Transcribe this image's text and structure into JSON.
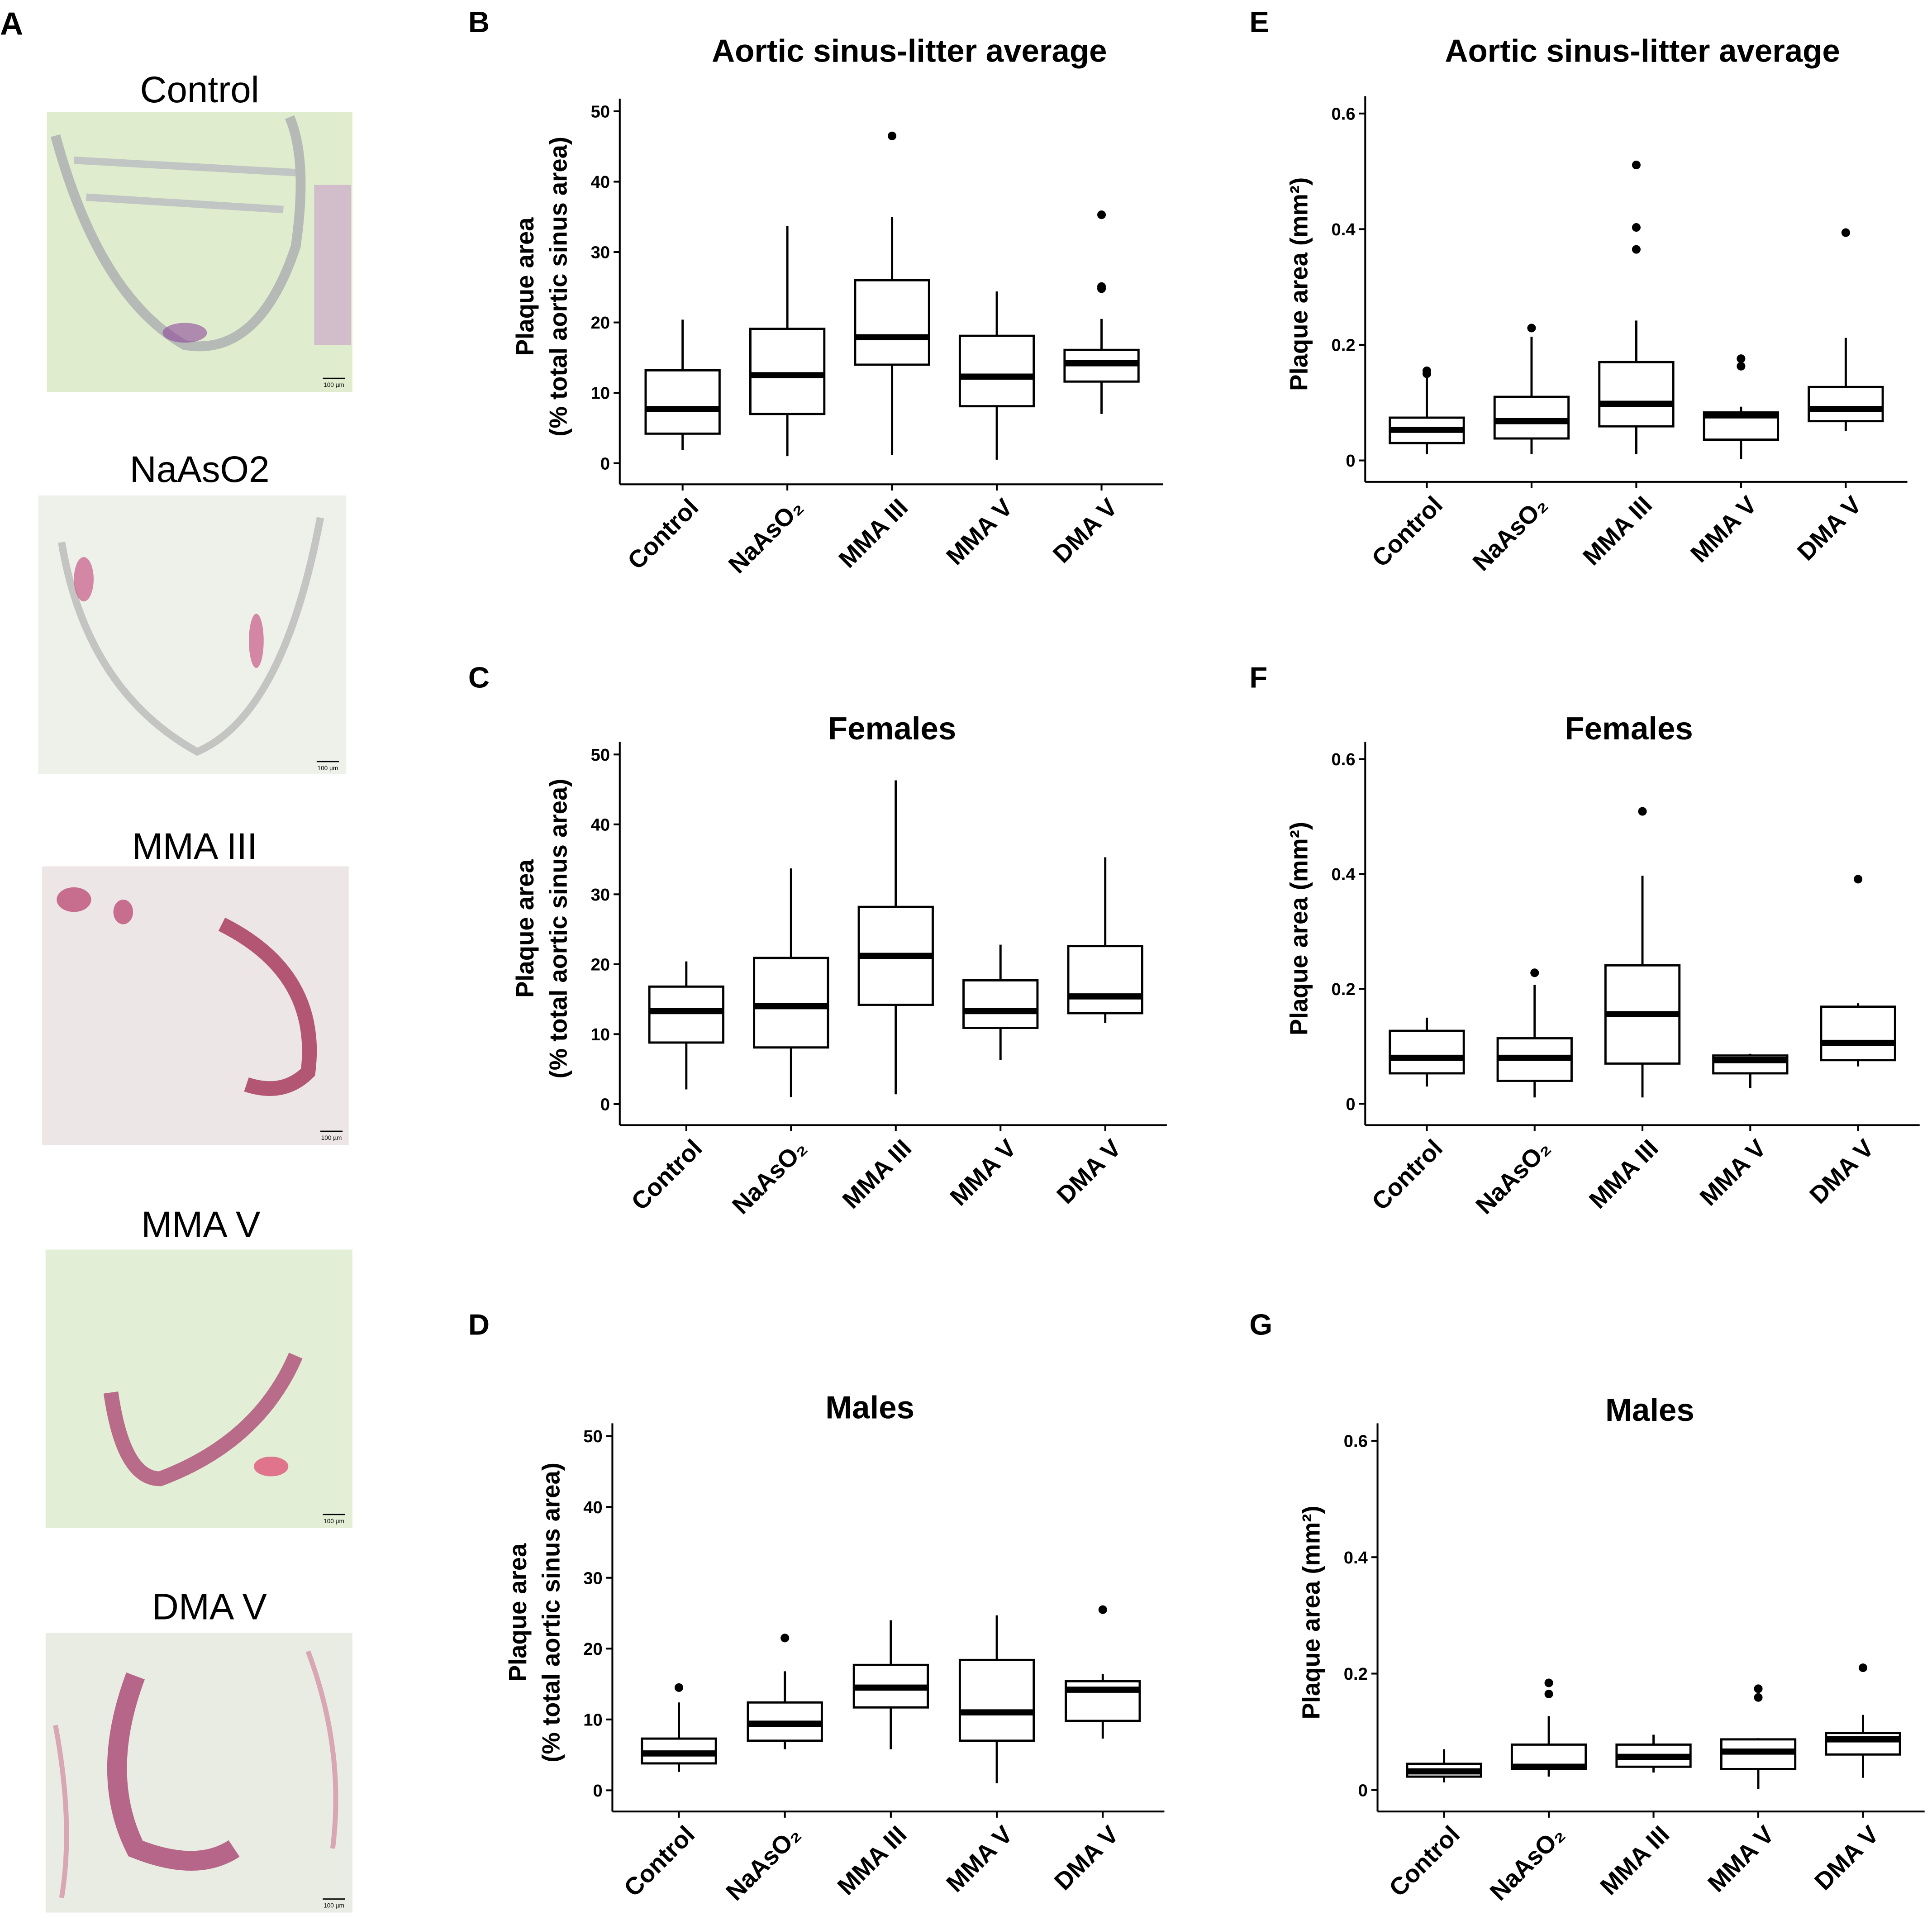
{
  "panel_a": {
    "label": "A",
    "images": [
      {
        "title": "Control",
        "scale_bar": "100 µm"
      },
      {
        "title": "NaAsO2",
        "scale_bar": "100 µm"
      },
      {
        "title": "MMA III",
        "scale_bar": "100 µm"
      },
      {
        "title": "MMA V",
        "scale_bar": "100 µm"
      },
      {
        "title": "DMA V",
        "scale_bar": "100 µm"
      }
    ]
  },
  "chart_data": [
    {
      "type": "box",
      "panel": "B",
      "title": "Aortic sinus-litter average",
      "y_label": [
        "Plaque area",
        "(% total aortic sinus area)"
      ],
      "categories": [
        "Control",
        "NaAsO₂",
        "MMA III",
        "MMA V",
        "DMA V"
      ],
      "ylim": [
        -1.6,
        51.8
      ],
      "yticks": [
        0,
        10,
        20,
        30,
        40,
        50
      ],
      "boxes": [
        {
          "min": 1.9,
          "q1": 4.2,
          "median": 7.7,
          "q3": 13.2,
          "max": 20.4,
          "outliers": []
        },
        {
          "min": 1,
          "q1": 7,
          "median": 12.5,
          "q3": 19.1,
          "max": 33.7,
          "outliers": []
        },
        {
          "min": 1.2,
          "q1": 14,
          "median": 17.9,
          "q3": 26,
          "max": 35,
          "outliers": [
            46.5
          ]
        },
        {
          "min": 0.5,
          "q1": 8.1,
          "median": 12.3,
          "q3": 18.1,
          "max": 24.4,
          "outliers": []
        },
        {
          "min": 7,
          "q1": 11.6,
          "median": 14.2,
          "q3": 16.1,
          "max": 20.5,
          "outliers": [
            24.8,
            25.1,
            35.3
          ]
        }
      ]
    },
    {
      "type": "box",
      "panel": "C",
      "title": "Females",
      "y_label": [
        "Plaque area",
        "(% total aortic sinus area)"
      ],
      "categories": [
        "Control",
        "NaAsO₂",
        "MMA III",
        "MMA V",
        "DMA V"
      ],
      "ylim": [
        -1.6,
        51.8
      ],
      "yticks": [
        0,
        10,
        20,
        30,
        40,
        50
      ],
      "boxes": [
        {
          "min": 2.1,
          "q1": 8.8,
          "median": 13.3,
          "q3": 16.8,
          "max": 20.4,
          "outliers": []
        },
        {
          "min": 1,
          "q1": 8.1,
          "median": 14,
          "q3": 20.9,
          "max": 33.7,
          "outliers": []
        },
        {
          "min": 1.4,
          "q1": 14.2,
          "median": 21.2,
          "q3": 28.2,
          "max": 46.3,
          "outliers": []
        },
        {
          "min": 6.3,
          "q1": 10.9,
          "median": 13.3,
          "q3": 17.7,
          "max": 22.8,
          "outliers": []
        },
        {
          "min": 11.6,
          "q1": 13,
          "median": 15.4,
          "q3": 22.6,
          "max": 35.3,
          "outliers": []
        }
      ]
    },
    {
      "type": "box",
      "panel": "D",
      "title": "Males",
      "y_label": [
        "Plaque area",
        "(% total aortic sinus area)"
      ],
      "categories": [
        "Control",
        "NaAsO₂",
        "MMA III",
        "MMA V",
        "DMA V"
      ],
      "ylim": [
        -1.6,
        51.8
      ],
      "yticks": [
        0,
        10,
        20,
        30,
        40,
        50
      ],
      "boxes": [
        {
          "min": 2.6,
          "q1": 3.8,
          "median": 5.2,
          "q3": 7.3,
          "max": 12.4,
          "outliers": [
            14.5
          ]
        },
        {
          "min": 5.8,
          "q1": 7,
          "median": 9.4,
          "q3": 12.4,
          "max": 16.8,
          "outliers": [
            21.5
          ]
        },
        {
          "min": 5.8,
          "q1": 11.7,
          "median": 14.5,
          "q3": 17.7,
          "max": 24,
          "outliers": []
        },
        {
          "min": 1,
          "q1": 7,
          "median": 11,
          "q3": 18.4,
          "max": 24.7,
          "outliers": []
        },
        {
          "min": 7.3,
          "q1": 9.8,
          "median": 14.2,
          "q3": 15.4,
          "max": 16.4,
          "outliers": [
            25.5
          ]
        }
      ]
    },
    {
      "type": "box",
      "panel": "E",
      "title": "Aortic sinus-litter average",
      "y_label": "Plaque area (mm²)",
      "categories": [
        "Control",
        "NaAsO₂",
        "MMA III",
        "MMA V",
        "DMA V"
      ],
      "ylim": [
        -0.02,
        0.63
      ],
      "yticks": [
        0,
        0.2,
        0.4,
        0.6
      ],
      "boxes": [
        {
          "min": 0.011,
          "q1": 0.03,
          "median": 0.053,
          "q3": 0.074,
          "max": 0.144,
          "outliers": [
            0.15,
            0.155
          ]
        },
        {
          "min": 0.011,
          "q1": 0.038,
          "median": 0.068,
          "q3": 0.11,
          "max": 0.214,
          "outliers": [
            0.229
          ]
        },
        {
          "min": 0.011,
          "q1": 0.059,
          "median": 0.098,
          "q3": 0.17,
          "max": 0.242,
          "outliers": [
            0.365,
            0.403,
            0.511
          ]
        },
        {
          "min": 0.002,
          "q1": 0.036,
          "median": 0.078,
          "q3": 0.083,
          "max": 0.093,
          "outliers": [
            0.163,
            0.176
          ]
        },
        {
          "min": 0.051,
          "q1": 0.068,
          "median": 0.089,
          "q3": 0.127,
          "max": 0.212,
          "outliers": [
            0.394
          ]
        }
      ]
    },
    {
      "type": "box",
      "panel": "F",
      "title": "Females",
      "y_label": "Plaque area (mm²)",
      "categories": [
        "Control",
        "NaAsO₂",
        "MMA III",
        "MMA V",
        "DMA V"
      ],
      "ylim": [
        -0.02,
        0.63
      ],
      "yticks": [
        0,
        0.2,
        0.4,
        0.6
      ],
      "boxes": [
        {
          "min": 0.03,
          "q1": 0.053,
          "median": 0.08,
          "q3": 0.127,
          "max": 0.15,
          "outliers": []
        },
        {
          "min": 0.011,
          "q1": 0.04,
          "median": 0.08,
          "q3": 0.114,
          "max": 0.207,
          "outliers": [
            0.228
          ]
        },
        {
          "min": 0.011,
          "q1": 0.07,
          "median": 0.156,
          "q3": 0.241,
          "max": 0.397,
          "outliers": [
            0.509
          ]
        },
        {
          "min": 0.027,
          "q1": 0.053,
          "median": 0.076,
          "q3": 0.084,
          "max": 0.087,
          "outliers": []
        },
        {
          "min": 0.065,
          "q1": 0.076,
          "median": 0.106,
          "q3": 0.169,
          "max": 0.175,
          "outliers": [
            0.391
          ]
        }
      ]
    },
    {
      "type": "box",
      "panel": "G",
      "title": "Males",
      "y_label": "Plaque area (mm²)",
      "categories": [
        "Control",
        "NaAsO₂",
        "MMA III",
        "MMA V",
        "DMA V"
      ],
      "ylim": [
        -0.02,
        0.63
      ],
      "yticks": [
        0,
        0.2,
        0.4,
        0.6
      ],
      "boxes": [
        {
          "min": 0.013,
          "q1": 0.023,
          "median": 0.032,
          "q3": 0.045,
          "max": 0.07,
          "outliers": []
        },
        {
          "min": 0.023,
          "q1": 0.036,
          "median": 0.04,
          "q3": 0.078,
          "max": 0.127,
          "outliers": [
            0.165,
            0.184
          ]
        },
        {
          "min": 0.03,
          "q1": 0.04,
          "median": 0.057,
          "q3": 0.078,
          "max": 0.095,
          "outliers": []
        },
        {
          "min": 0.002,
          "q1": 0.036,
          "median": 0.066,
          "q3": 0.087,
          "max": 0.089,
          "outliers": [
            0.159,
            0.174
          ]
        },
        {
          "min": 0.021,
          "q1": 0.061,
          "median": 0.087,
          "q3": 0.098,
          "max": 0.129,
          "outliers": [
            0.21
          ]
        }
      ]
    }
  ]
}
